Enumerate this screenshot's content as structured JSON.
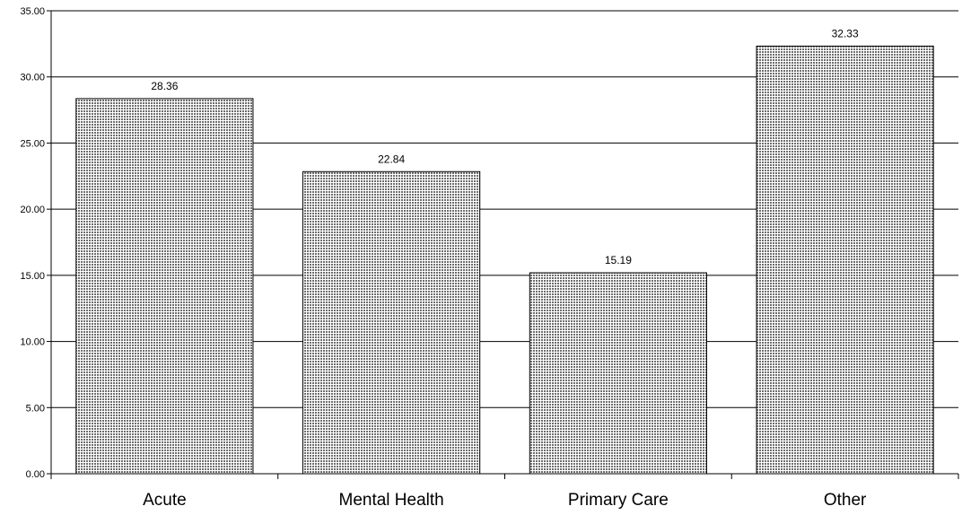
{
  "chart_data": {
    "type": "bar",
    "categories": [
      "Acute",
      "Mental Health",
      "Primary Care",
      "Other"
    ],
    "values": [
      28.36,
      22.84,
      15.19,
      32.33
    ],
    "data_labels": [
      "28.36",
      "22.84",
      "15.19",
      "32.33"
    ],
    "y_ticks": [
      "0.00",
      "5.00",
      "10.00",
      "15.00",
      "20.00",
      "25.00",
      "30.00",
      "35.00"
    ],
    "ylim": [
      0,
      35
    ],
    "grid": true,
    "legend": "none",
    "bar_fill": "#c8c8c8",
    "bar_pattern": "dotted",
    "bar_stroke": "#000000",
    "grid_color": "#000000"
  }
}
